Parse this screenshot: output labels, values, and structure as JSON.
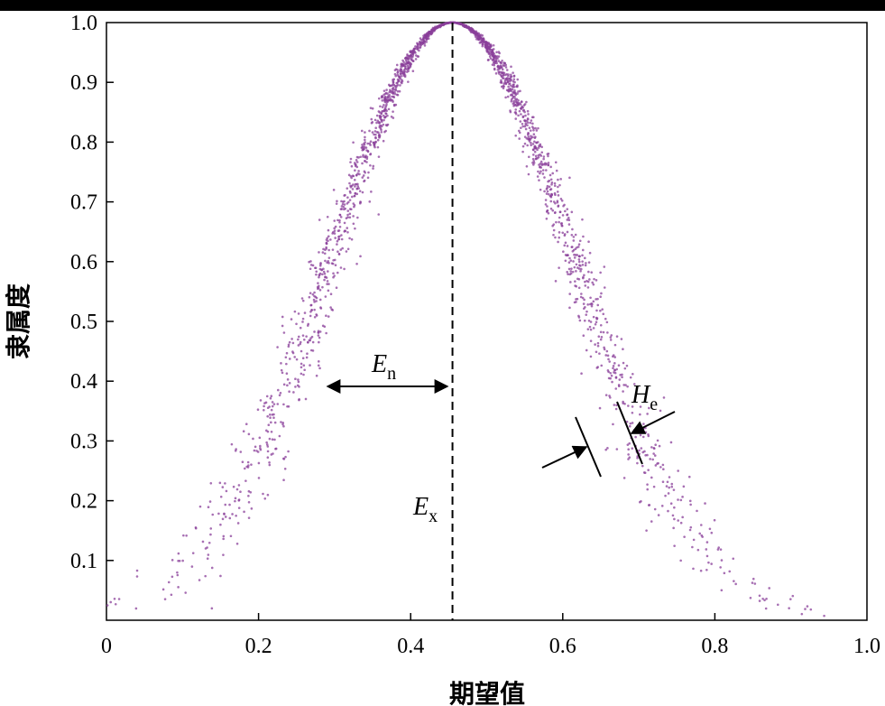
{
  "chart_data": {
    "type": "scatter",
    "title": "",
    "xlabel": "期望值",
    "ylabel": "隶属度",
    "xlim": [
      0,
      1.0
    ],
    "ylim": [
      0,
      1.0
    ],
    "x_ticks": [
      "0",
      "0.2",
      "0.4",
      "0.6",
      "0.8",
      "1.0"
    ],
    "y_ticks": [
      "0.1",
      "0.2",
      "0.3",
      "0.4",
      "0.5",
      "0.6",
      "0.7",
      "0.8",
      "0.9",
      "1.0"
    ],
    "grid": false,
    "legend": "none",
    "point_color": "#8a3f9a",
    "cloud_model": {
      "Ex": 0.455,
      "En": 0.16,
      "He": 0.012,
      "drop_count": 2200
    },
    "annotations": {
      "en": {
        "label": "E",
        "sub": "n"
      },
      "ex": {
        "label": "E",
        "sub": "x"
      },
      "he": {
        "label": "H",
        "sub": "e"
      }
    }
  }
}
